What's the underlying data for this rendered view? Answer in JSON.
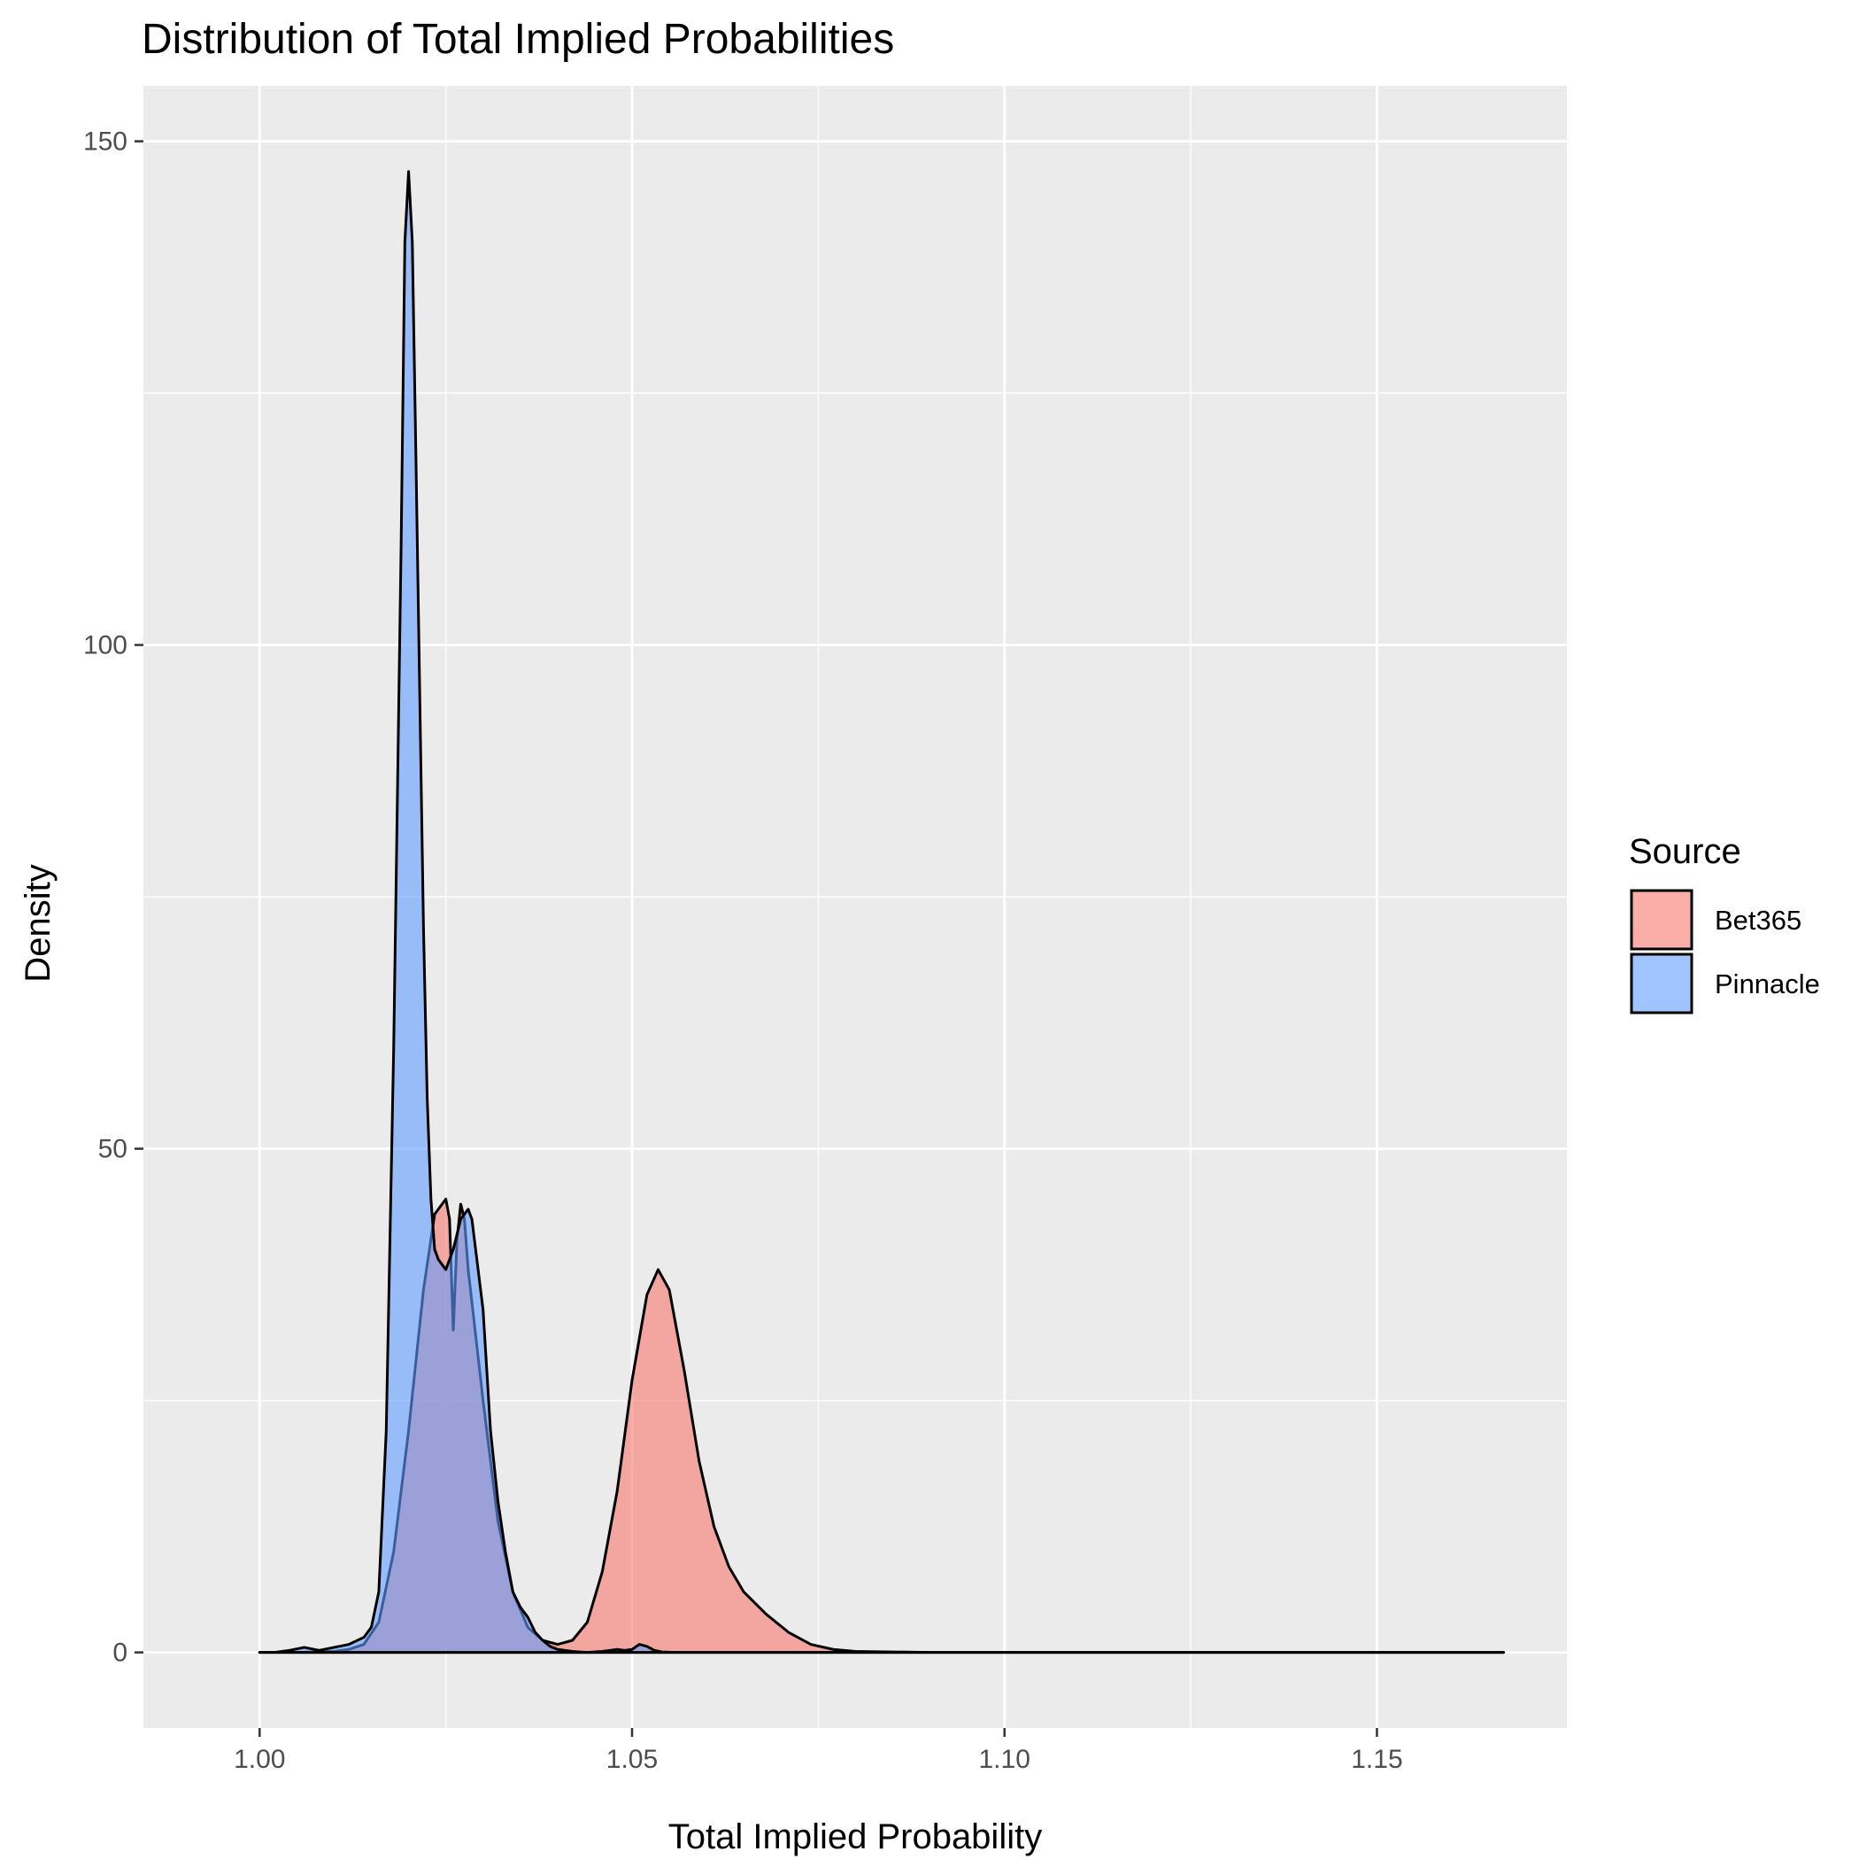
{
  "chart_data": {
    "type": "area",
    "title": "Distribution of Total Implied Probabilities",
    "xlabel": "Total Implied Probability",
    "ylabel": "Density",
    "xlim": [
      0.9844,
      1.1755
    ],
    "ylim": [
      -7.5,
      155.5
    ],
    "x_ticks": [
      {
        "value": 1.0,
        "label": "1.00"
      },
      {
        "value": 1.05,
        "label": "1.05"
      },
      {
        "value": 1.1,
        "label": "1.10"
      },
      {
        "value": 1.15,
        "label": "1.15"
      }
    ],
    "y_ticks": [
      {
        "value": 0,
        "label": "0"
      },
      {
        "value": 50,
        "label": "50"
      },
      {
        "value": 100,
        "label": "100"
      },
      {
        "value": 150,
        "label": "150"
      }
    ],
    "x_minor": [
      1.025,
      1.075,
      1.125
    ],
    "y_minor": [
      25,
      75,
      125
    ],
    "grid": true,
    "legend": {
      "title": "Source",
      "position": "right"
    },
    "series": [
      {
        "name": "Bet365",
        "fill": "#F8766D",
        "fill_opacity": 0.6,
        "x": [
          1.0,
          1.005,
          1.01,
          1.012,
          1.014,
          1.016,
          1.018,
          1.02,
          1.022,
          1.0235,
          1.025,
          1.0255,
          1.026,
          1.0265,
          1.027,
          1.0275,
          1.028,
          1.03,
          1.032,
          1.034,
          1.036,
          1.038,
          1.04,
          1.042,
          1.044,
          1.046,
          1.048,
          1.05,
          1.052,
          1.0535,
          1.055,
          1.057,
          1.059,
          1.061,
          1.063,
          1.065,
          1.068,
          1.071,
          1.074,
          1.077,
          1.08,
          1.085,
          1.09,
          1.1,
          1.12,
          1.15,
          1.167
        ],
        "values": [
          0,
          0,
          0.1,
          0.3,
          0.8,
          3,
          10,
          22,
          36,
          43.5,
          45,
          43,
          32,
          41,
          44.5,
          43,
          38,
          25,
          13,
          6,
          2.5,
          1.2,
          0.8,
          1.2,
          3,
          8,
          16,
          27,
          35.5,
          38,
          36,
          28,
          19,
          12.5,
          8.5,
          6,
          3.8,
          2,
          0.8,
          0.3,
          0.1,
          0.05,
          0,
          0,
          0,
          0,
          0
        ]
      },
      {
        "name": "Pinnacle",
        "fill": "#619CFF",
        "fill_opacity": 0.6,
        "x": [
          1.0,
          1.002,
          1.004,
          1.006,
          1.008,
          1.01,
          1.012,
          1.014,
          1.015,
          1.016,
          1.017,
          1.018,
          1.019,
          1.0195,
          1.02,
          1.0205,
          1.021,
          1.0215,
          1.022,
          1.0225,
          1.023,
          1.0235,
          1.024,
          1.025,
          1.026,
          1.027,
          1.028,
          1.0285,
          1.029,
          1.03,
          1.031,
          1.032,
          1.033,
          1.034,
          1.035,
          1.036,
          1.037,
          1.038,
          1.039,
          1.04,
          1.041,
          1.042,
          1.043,
          1.044,
          1.046,
          1.048,
          1.049,
          1.05,
          1.051,
          1.052,
          1.053,
          1.054,
          1.056,
          1.06,
          1.08,
          1.1,
          1.167
        ],
        "values": [
          0,
          0,
          0.2,
          0.5,
          0.2,
          0.5,
          0.8,
          1.5,
          2.5,
          6,
          22,
          60,
          110,
          140,
          147,
          140,
          118,
          95,
          72,
          55,
          45,
          40,
          39,
          38,
          40,
          43,
          44,
          43,
          40,
          34,
          22,
          15,
          10,
          6,
          4.5,
          3.5,
          2,
          1.2,
          0.6,
          0.3,
          0.2,
          0.1,
          0.05,
          0,
          0.1,
          0.3,
          0.2,
          0.3,
          0.8,
          0.6,
          0.2,
          0.05,
          0,
          0,
          0,
          0,
          0
        ]
      }
    ]
  }
}
